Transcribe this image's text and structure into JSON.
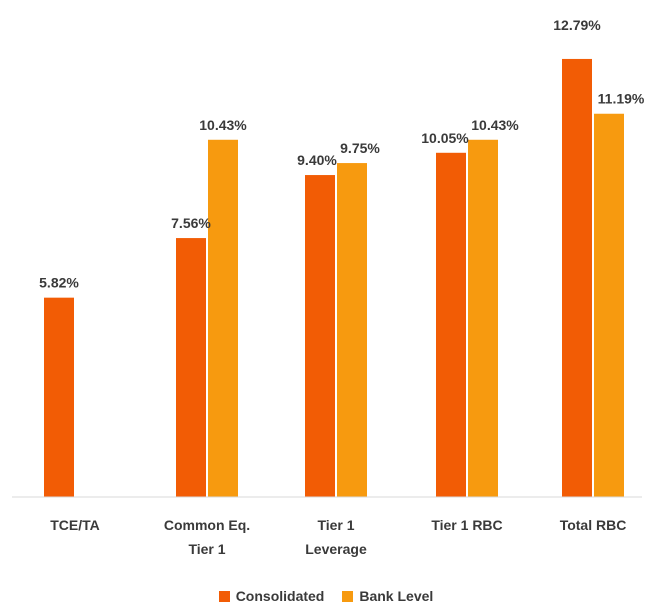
{
  "chart_data": {
    "type": "bar",
    "categories": [
      [
        "TCE/TA"
      ],
      [
        "Common Eq.",
        "Tier 1"
      ],
      [
        "Tier 1",
        "Leverage"
      ],
      [
        "Tier 1 RBC"
      ],
      [
        "Total RBC"
      ]
    ],
    "series": [
      {
        "name": "Consolidated",
        "color": "#f25c05",
        "values": [
          5.82,
          7.56,
          9.4,
          10.05,
          12.79
        ],
        "labels": [
          "5.82%",
          "7.56%",
          "9.40%",
          "10.05%",
          "12.79%"
        ]
      },
      {
        "name": "Bank Level",
        "color": "#f79a0f",
        "values": [
          null,
          10.43,
          9.75,
          10.43,
          11.19
        ],
        "labels": [
          null,
          "10.43%",
          "9.75%",
          "10.43%",
          "11.19%"
        ]
      }
    ],
    "ylim": [
      0,
      13.5
    ],
    "grid": false,
    "legend": "bottom-center"
  }
}
